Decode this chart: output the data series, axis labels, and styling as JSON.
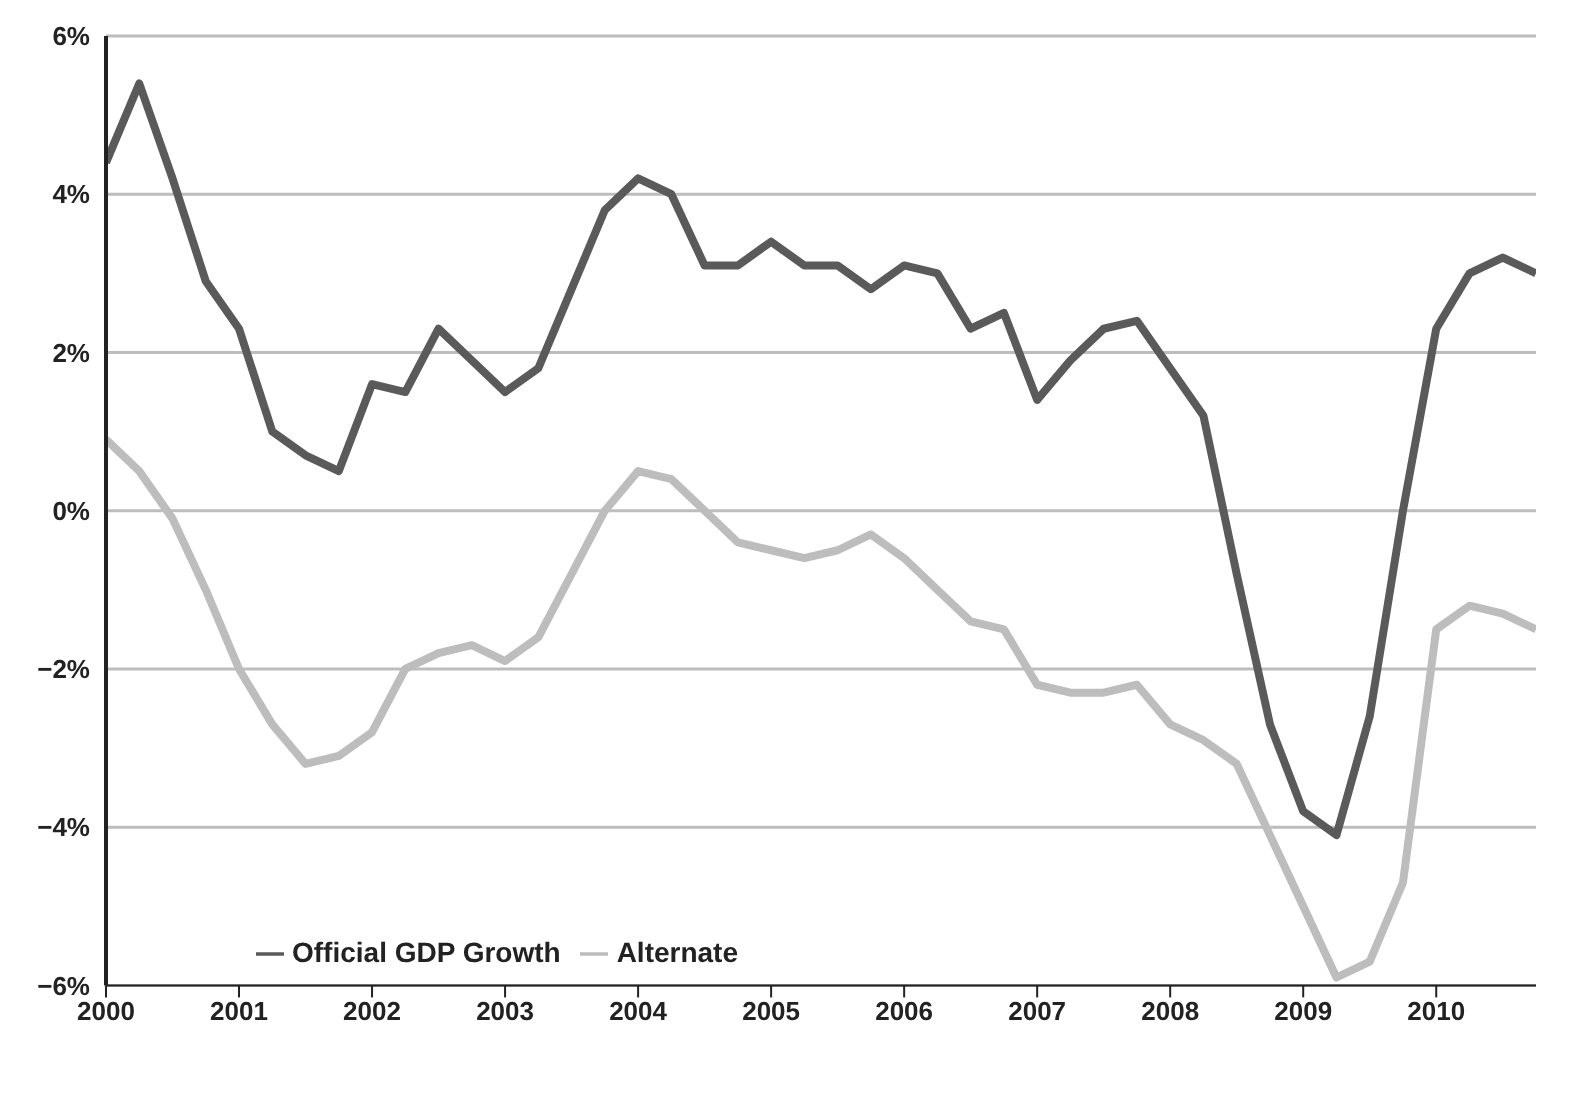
{
  "chart_data": {
    "type": "line",
    "x": [
      2000,
      2000.25,
      2000.5,
      2000.75,
      2001,
      2001.25,
      2001.5,
      2001.75,
      2002,
      2002.25,
      2002.5,
      2002.75,
      2003,
      2003.25,
      2003.5,
      2003.75,
      2004,
      2004.25,
      2004.5,
      2004.75,
      2005,
      2005.25,
      2005.5,
      2005.75,
      2006,
      2006.25,
      2006.5,
      2006.75,
      2007,
      2007.25,
      2007.5,
      2007.75,
      2008,
      2008.25,
      2008.5,
      2008.75,
      2009,
      2009.25,
      2009.5,
      2009.75,
      2010,
      2010.25,
      2010.5,
      2010.75
    ],
    "series": [
      {
        "name": "Official GDP Growth",
        "color": "#5a5a5a",
        "values": [
          4.4,
          5.4,
          4.2,
          2.9,
          2.3,
          1.0,
          0.7,
          0.5,
          1.6,
          1.5,
          2.3,
          1.9,
          1.5,
          1.8,
          2.8,
          3.8,
          4.2,
          4.0,
          3.1,
          3.1,
          3.4,
          3.1,
          3.1,
          2.8,
          3.1,
          3.0,
          2.3,
          2.5,
          1.4,
          1.9,
          2.3,
          2.4,
          1.8,
          1.2,
          -0.8,
          -2.7,
          -3.8,
          -4.1,
          -2.6,
          0.0,
          2.3,
          3.0,
          3.2,
          3.0
        ]
      },
      {
        "name": "Alternate",
        "color": "#bdbdbd",
        "values": [
          0.9,
          0.5,
          -0.1,
          -1.0,
          -2.0,
          -2.7,
          -3.2,
          -3.1,
          -2.8,
          -2.0,
          -1.8,
          -1.7,
          -1.9,
          -1.6,
          -0.8,
          0.0,
          0.5,
          0.4,
          0.0,
          -0.4,
          -0.5,
          -0.6,
          -0.5,
          -0.3,
          -0.6,
          -1.0,
          -1.4,
          -1.5,
          -2.2,
          -2.3,
          -2.3,
          -2.2,
          -2.7,
          -2.9,
          -3.2,
          -4.1,
          -5.0,
          -5.9,
          -5.7,
          -4.7,
          -1.5,
          -1.2,
          -1.3,
          -1.5
        ]
      }
    ],
    "xlim": [
      2000,
      2010.75
    ],
    "xticks": [
      2000,
      2001,
      2002,
      2003,
      2004,
      2005,
      2006,
      2007,
      2008,
      2009,
      2010
    ],
    "ylim": [
      -6,
      6
    ],
    "yticks": [
      {
        "value": -6,
        "label": "−6%"
      },
      {
        "value": -4,
        "label": "−4%"
      },
      {
        "value": -2,
        "label": "−2%"
      },
      {
        "value": 0,
        "label": "0%"
      },
      {
        "value": 2,
        "label": "2%"
      },
      {
        "value": 4,
        "label": "4%"
      },
      {
        "value": 6,
        "label": "6%"
      }
    ],
    "grid": "y",
    "legend": "bottom left",
    "marker": "none",
    "line_style": "solid"
  }
}
